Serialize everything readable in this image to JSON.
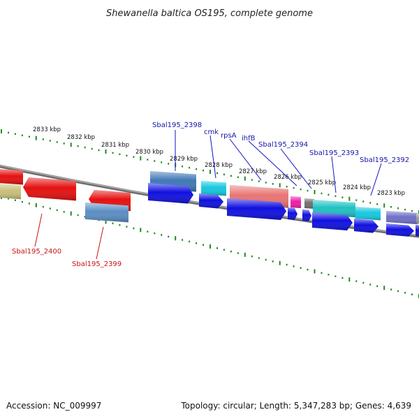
{
  "title": "Shewanella baltica OS195, complete genome",
  "accession": "Accession: NC_009997",
  "stats": "Topology: circular; Length: 5,347,283 bp; Genes: 4,639",
  "colors": {
    "backbone": "#7a7a7a",
    "ticks": "#1f8a1f",
    "label_top": "#1414a8",
    "label_bottom": "#c81414"
  },
  "scale_labels": [
    {
      "text": "2833 kbp"
    },
    {
      "text": "2832 kbp"
    },
    {
      "text": "2831 kbp"
    },
    {
      "text": "2830 kbp"
    },
    {
      "text": "2829 kbp"
    },
    {
      "text": "2828 kbp"
    },
    {
      "text": "2827 kbp"
    },
    {
      "text": "2826 kbp"
    },
    {
      "text": "2825 kbp"
    },
    {
      "text": "2824 kbp"
    },
    {
      "text": "2823 kbp"
    }
  ],
  "gene_labels_top": [
    {
      "text": "Sbal195_2398"
    },
    {
      "text": "cmk"
    },
    {
      "text": "rpsA"
    },
    {
      "text": "ihfB"
    },
    {
      "text": "Sbal195_2394"
    },
    {
      "text": "Sbal195_2393"
    },
    {
      "text": "Sbal195_2392"
    }
  ],
  "gene_labels_bottom": [
    {
      "text": "Sbal195_2400"
    },
    {
      "text": "Sbal195_2399"
    }
  ]
}
